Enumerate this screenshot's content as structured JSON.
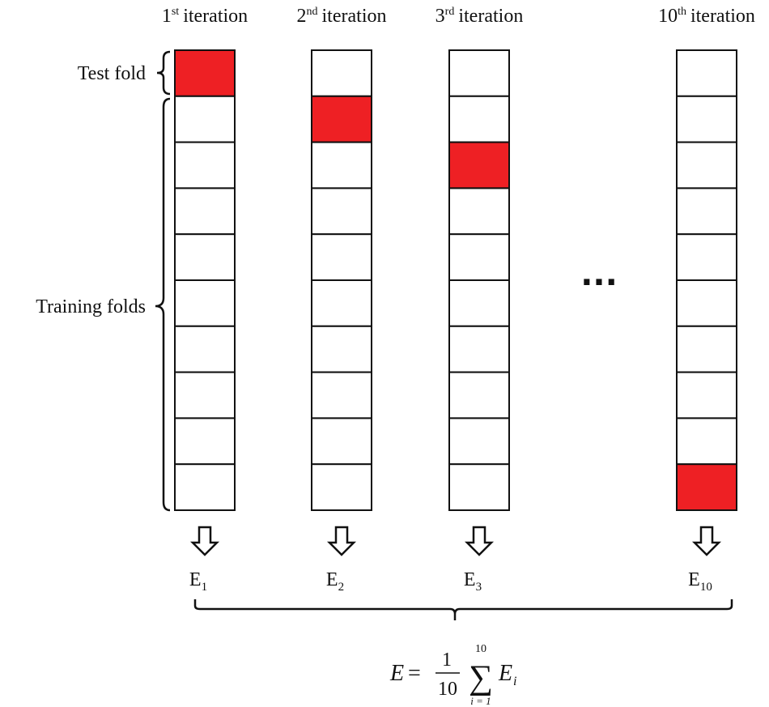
{
  "colors": {
    "test_fold": "#ee2024",
    "training_fold": "#ffffff",
    "stroke": "#111111"
  },
  "folds_per_iteration": 10,
  "iterations": [
    {
      "num": "1",
      "suffix": "st",
      "word": "iteration",
      "test_index": 1,
      "error": "E",
      "error_sub": "1"
    },
    {
      "num": "2",
      "suffix": "nd",
      "word": "iteration",
      "test_index": 2,
      "error": "E",
      "error_sub": "2"
    },
    {
      "num": "3",
      "suffix": "rd",
      "word": "iteration",
      "test_index": 3,
      "error": "E",
      "error_sub": "3"
    },
    {
      "num": "10",
      "suffix": "th",
      "word": "iteration",
      "test_index": 10,
      "error": "E",
      "error_sub": "10"
    }
  ],
  "labels": {
    "test_fold": "Test fold",
    "training_folds": "Training folds",
    "ellipsis": "..."
  },
  "formula": {
    "lhs": "E",
    "eq": "=",
    "num": "1",
    "den": "10",
    "sum": "∑",
    "upper": "10",
    "lower": "i = 1",
    "term": "E",
    "term_sub": "i"
  }
}
